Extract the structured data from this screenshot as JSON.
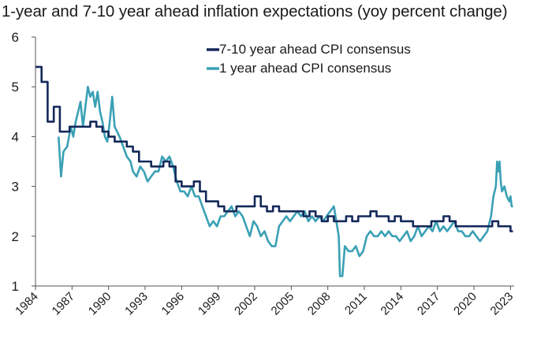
{
  "chart_data": {
    "type": "line",
    "title": "1-year and 7-10 year ahead inflation expectations (yoy percent change)",
    "xlabel": "",
    "ylabel": "",
    "xlim": [
      1984,
      2023.3
    ],
    "ylim": [
      1,
      6
    ],
    "y_ticks": [
      "1",
      "2",
      "3",
      "4",
      "5",
      "6"
    ],
    "x_ticks": [
      "1984",
      "1987",
      "1990",
      "1993",
      "1996",
      "1999",
      "2002",
      "2005",
      "2008",
      "2011",
      "2014",
      "2017",
      "2020",
      "2023"
    ],
    "grid": false,
    "legend": "top-right",
    "series": [
      {
        "name": "7-10 year ahead CPI consensus",
        "color": "#14285a",
        "step": true,
        "points": [
          [
            1984.0,
            5.4
          ],
          [
            1984.5,
            5.1
          ],
          [
            1985.0,
            4.3
          ],
          [
            1985.5,
            4.6
          ],
          [
            1986.0,
            4.1
          ],
          [
            1986.8,
            4.2
          ],
          [
            1987.5,
            4.2
          ],
          [
            1988.0,
            4.2
          ],
          [
            1988.5,
            4.3
          ],
          [
            1989.0,
            4.2
          ],
          [
            1989.5,
            4.1
          ],
          [
            1990.0,
            4.0
          ],
          [
            1990.5,
            3.9
          ],
          [
            1991.0,
            3.9
          ],
          [
            1991.5,
            3.8
          ],
          [
            1992.0,
            3.7
          ],
          [
            1992.5,
            3.5
          ],
          [
            1993.0,
            3.5
          ],
          [
            1993.5,
            3.4
          ],
          [
            1994.0,
            3.4
          ],
          [
            1994.5,
            3.5
          ],
          [
            1995.0,
            3.4
          ],
          [
            1995.5,
            3.1
          ],
          [
            1996.0,
            3.0
          ],
          [
            1996.5,
            3.0
          ],
          [
            1997.0,
            3.1
          ],
          [
            1997.5,
            2.9
          ],
          [
            1998.0,
            2.7
          ],
          [
            1998.5,
            2.7
          ],
          [
            1999.0,
            2.6
          ],
          [
            1999.5,
            2.5
          ],
          [
            2000.0,
            2.5
          ],
          [
            2000.5,
            2.6
          ],
          [
            2001.0,
            2.6
          ],
          [
            2001.5,
            2.6
          ],
          [
            2002.0,
            2.8
          ],
          [
            2002.5,
            2.6
          ],
          [
            2003.0,
            2.5
          ],
          [
            2003.5,
            2.6
          ],
          [
            2004.0,
            2.5
          ],
          [
            2004.5,
            2.5
          ],
          [
            2005.0,
            2.5
          ],
          [
            2005.5,
            2.5
          ],
          [
            2006.0,
            2.4
          ],
          [
            2006.5,
            2.5
          ],
          [
            2007.0,
            2.4
          ],
          [
            2007.5,
            2.3
          ],
          [
            2008.0,
            2.4
          ],
          [
            2008.5,
            2.3
          ],
          [
            2009.0,
            2.3
          ],
          [
            2009.5,
            2.4
          ],
          [
            2010.0,
            2.3
          ],
          [
            2010.5,
            2.4
          ],
          [
            2011.0,
            2.4
          ],
          [
            2011.5,
            2.5
          ],
          [
            2012.0,
            2.4
          ],
          [
            2012.5,
            2.4
          ],
          [
            2013.0,
            2.3
          ],
          [
            2013.5,
            2.4
          ],
          [
            2014.0,
            2.3
          ],
          [
            2014.5,
            2.3
          ],
          [
            2015.0,
            2.2
          ],
          [
            2015.5,
            2.2
          ],
          [
            2016.0,
            2.2
          ],
          [
            2016.5,
            2.3
          ],
          [
            2017.0,
            2.3
          ],
          [
            2017.5,
            2.4
          ],
          [
            2018.0,
            2.3
          ],
          [
            2018.5,
            2.2
          ],
          [
            2019.0,
            2.2
          ],
          [
            2019.5,
            2.2
          ],
          [
            2020.0,
            2.2
          ],
          [
            2020.5,
            2.2
          ],
          [
            2021.0,
            2.2
          ],
          [
            2021.5,
            2.3
          ],
          [
            2022.0,
            2.2
          ],
          [
            2022.5,
            2.2
          ],
          [
            2023.0,
            2.1
          ],
          [
            2023.2,
            2.1
          ]
        ]
      },
      {
        "name": "1 year ahead CPI consensus",
        "color": "#3aa0b5",
        "step": false,
        "points": [
          [
            1985.9,
            4.0
          ],
          [
            1986.1,
            3.2
          ],
          [
            1986.3,
            3.7
          ],
          [
            1986.6,
            3.8
          ],
          [
            1986.9,
            4.2
          ],
          [
            1987.1,
            4.0
          ],
          [
            1987.3,
            4.3
          ],
          [
            1987.5,
            4.5
          ],
          [
            1987.7,
            4.7
          ],
          [
            1987.9,
            4.2
          ],
          [
            1988.1,
            4.6
          ],
          [
            1988.3,
            5.0
          ],
          [
            1988.5,
            4.8
          ],
          [
            1988.7,
            4.9
          ],
          [
            1988.9,
            4.6
          ],
          [
            1989.1,
            4.9
          ],
          [
            1989.3,
            4.5
          ],
          [
            1989.5,
            4.3
          ],
          [
            1989.7,
            4.0
          ],
          [
            1989.9,
            3.9
          ],
          [
            1990.1,
            4.3
          ],
          [
            1990.3,
            4.8
          ],
          [
            1990.5,
            4.2
          ],
          [
            1990.7,
            4.1
          ],
          [
            1990.9,
            4.0
          ],
          [
            1991.2,
            3.8
          ],
          [
            1991.5,
            3.6
          ],
          [
            1991.8,
            3.5
          ],
          [
            1992.0,
            3.3
          ],
          [
            1992.3,
            3.2
          ],
          [
            1992.6,
            3.4
          ],
          [
            1992.9,
            3.3
          ],
          [
            1993.2,
            3.1
          ],
          [
            1993.5,
            3.2
          ],
          [
            1993.8,
            3.3
          ],
          [
            1994.1,
            3.3
          ],
          [
            1994.4,
            3.6
          ],
          [
            1994.7,
            3.5
          ],
          [
            1995.0,
            3.6
          ],
          [
            1995.3,
            3.4
          ],
          [
            1995.6,
            3.1
          ],
          [
            1995.9,
            2.9
          ],
          [
            1996.2,
            2.9
          ],
          [
            1996.5,
            2.8
          ],
          [
            1996.8,
            3.0
          ],
          [
            1997.1,
            2.8
          ],
          [
            1997.4,
            2.8
          ],
          [
            1997.7,
            2.6
          ],
          [
            1998.0,
            2.4
          ],
          [
            1998.3,
            2.2
          ],
          [
            1998.6,
            2.3
          ],
          [
            1998.9,
            2.2
          ],
          [
            1999.2,
            2.4
          ],
          [
            1999.5,
            2.4
          ],
          [
            1999.8,
            2.5
          ],
          [
            2000.1,
            2.6
          ],
          [
            2000.4,
            2.4
          ],
          [
            2000.7,
            2.5
          ],
          [
            2001.0,
            2.4
          ],
          [
            2001.3,
            2.2
          ],
          [
            2001.6,
            2.0
          ],
          [
            2001.9,
            2.3
          ],
          [
            2002.2,
            2.2
          ],
          [
            2002.5,
            2.0
          ],
          [
            2002.8,
            2.1
          ],
          [
            2003.1,
            1.9
          ],
          [
            2003.4,
            1.8
          ],
          [
            2003.7,
            1.8
          ],
          [
            2004.0,
            2.2
          ],
          [
            2004.3,
            2.3
          ],
          [
            2004.6,
            2.4
          ],
          [
            2004.9,
            2.3
          ],
          [
            2005.2,
            2.4
          ],
          [
            2005.5,
            2.5
          ],
          [
            2005.8,
            2.4
          ],
          [
            2006.1,
            2.5
          ],
          [
            2006.4,
            2.3
          ],
          [
            2006.7,
            2.4
          ],
          [
            2007.0,
            2.3
          ],
          [
            2007.3,
            2.4
          ],
          [
            2007.6,
            2.3
          ],
          [
            2007.9,
            2.4
          ],
          [
            2008.2,
            2.5
          ],
          [
            2008.5,
            2.6
          ],
          [
            2008.7,
            2.3
          ],
          [
            2008.9,
            2.0
          ],
          [
            2009.0,
            1.2
          ],
          [
            2009.2,
            1.2
          ],
          [
            2009.4,
            1.8
          ],
          [
            2009.7,
            1.7
          ],
          [
            2010.0,
            1.7
          ],
          [
            2010.3,
            1.8
          ],
          [
            2010.6,
            1.6
          ],
          [
            2010.9,
            1.7
          ],
          [
            2011.2,
            2.0
          ],
          [
            2011.5,
            2.1
          ],
          [
            2011.8,
            2.0
          ],
          [
            2012.1,
            2.0
          ],
          [
            2012.4,
            2.1
          ],
          [
            2012.7,
            2.0
          ],
          [
            2013.0,
            2.1
          ],
          [
            2013.3,
            2.0
          ],
          [
            2013.6,
            2.0
          ],
          [
            2013.9,
            1.9
          ],
          [
            2014.2,
            2.0
          ],
          [
            2014.5,
            2.1
          ],
          [
            2014.8,
            1.9
          ],
          [
            2015.1,
            2.0
          ],
          [
            2015.4,
            2.2
          ],
          [
            2015.7,
            2.0
          ],
          [
            2016.0,
            2.1
          ],
          [
            2016.3,
            2.2
          ],
          [
            2016.6,
            2.1
          ],
          [
            2016.9,
            2.3
          ],
          [
            2017.2,
            2.1
          ],
          [
            2017.5,
            2.2
          ],
          [
            2017.8,
            2.1
          ],
          [
            2018.1,
            2.2
          ],
          [
            2018.4,
            2.3
          ],
          [
            2018.7,
            2.1
          ],
          [
            2019.0,
            2.1
          ],
          [
            2019.3,
            2.0
          ],
          [
            2019.6,
            2.0
          ],
          [
            2019.9,
            2.1
          ],
          [
            2020.2,
            2.0
          ],
          [
            2020.5,
            1.9
          ],
          [
            2020.8,
            2.0
          ],
          [
            2021.1,
            2.1
          ],
          [
            2021.4,
            2.4
          ],
          [
            2021.6,
            2.8
          ],
          [
            2021.8,
            3.0
          ],
          [
            2021.9,
            3.5
          ],
          [
            2022.0,
            3.3
          ],
          [
            2022.1,
            3.5
          ],
          [
            2022.2,
            3.1
          ],
          [
            2022.3,
            2.9
          ],
          [
            2022.5,
            3.0
          ],
          [
            2022.7,
            2.8
          ],
          [
            2022.9,
            2.7
          ],
          [
            2023.0,
            2.8
          ],
          [
            2023.1,
            2.6
          ],
          [
            2023.2,
            2.6
          ]
        ]
      }
    ]
  }
}
